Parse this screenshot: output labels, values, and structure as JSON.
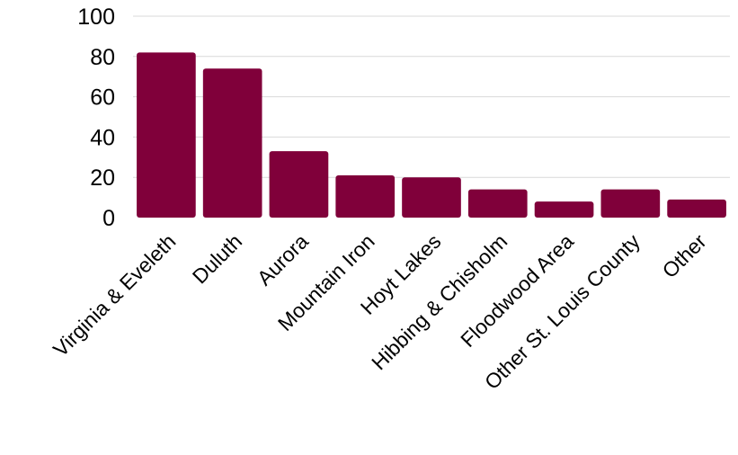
{
  "chart_data": {
    "type": "bar",
    "categories": [
      "Virginia & Eveleth",
      "Duluth",
      "Aurora",
      "Mountain Iron",
      "Hoyt Lakes",
      "Hibbing & Chisholm",
      "Floodwood Area",
      "Other St. Louis County",
      "Other"
    ],
    "values": [
      82,
      74,
      33,
      21,
      20,
      14,
      8,
      14,
      9
    ],
    "ylim": [
      0,
      100
    ],
    "yticks": [
      0,
      20,
      40,
      60,
      80,
      100
    ],
    "grid": true,
    "legend": "none",
    "bar_color": "#80003a"
  }
}
